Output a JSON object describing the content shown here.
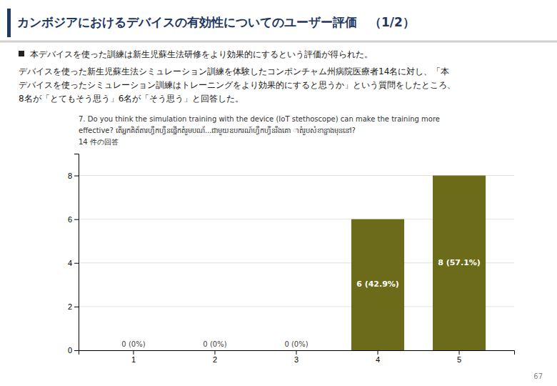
{
  "chart_data": {
    "type": "bar",
    "title": "カンボジアにおけるデバイスの有効性についてのユーザー評価　（1/2）",
    "annotations": [
      "本デバイスを使った訓練は新生児蘇生法研修をより効果的にするという評価が得られた。",
      "デバイスを使った新生児蘇生法シミュレーション訓練を体験したコンポンチャム州病院医療者14名に対し、「本",
      "デバイスを使ったシミュレーション訓練はトレーニングをより効果的にすると思うか」という質問をしたところ、",
      "8名が「とてもそう思う」6名が「そう思う」と回答した。",
      "7. Do you think the simulation training with the device (IoT stethoscope) can make the training more",
      "effective? តើអ្នកគិត័តារហ្វឺកហ្វឺនផ្នើកតំរួមបណ័...ជាមួយឧបករណ៍ហ្វឺកហ្វឺនរឹងគោ​ ាតំរួបសំខាន្ជាងមុននៅ?",
      "14 件の回答",
      "67"
    ],
    "categories": [
      1,
      2,
      3,
      4,
      5
    ],
    "values": [
      0,
      0,
      0,
      6,
      8
    ],
    "value_labels": [
      "0 (0%)",
      "0 (0%)",
      "0 (0%)",
      "6 (42.9%)",
      "8 (57.1%)"
    ],
    "data_labels": true,
    "color": "#6b6b1a",
    "ylim": [
      0,
      9
    ],
    "yticks": [
      0,
      2,
      4,
      6,
      8
    ],
    "grid": true
  }
}
